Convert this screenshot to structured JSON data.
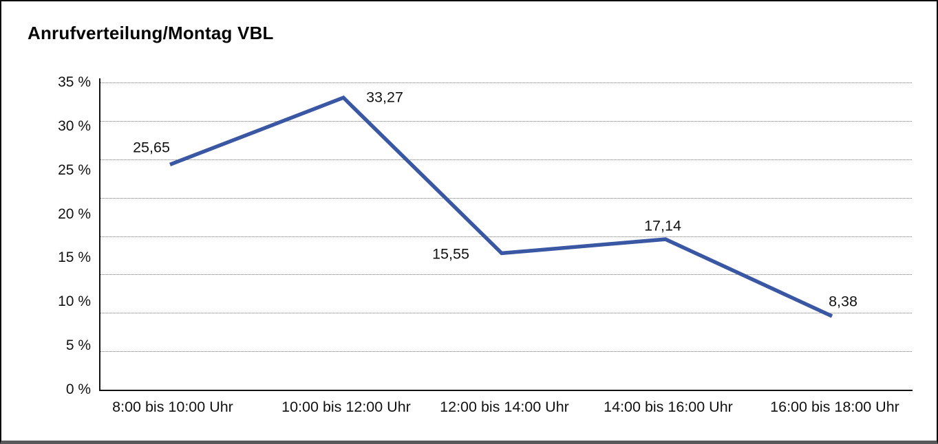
{
  "chart_data": {
    "type": "line",
    "title": "Anrufverteilung/Montag VBL",
    "categories": [
      "8:00 bis 10:00 Uhr",
      "10:00 bis 12:00 Uhr",
      "12:00 bis 14:00 Uhr",
      "14:00 bis 16:00 Uhr",
      "16:00 bis 18:00 Uhr"
    ],
    "series": [
      {
        "name": "Anrufverteilung Montag VBL",
        "values": [
          25.65,
          33.27,
          15.55,
          17.14,
          8.38
        ],
        "point_labels": [
          "25,65",
          "33,27",
          "15,55",
          "17,14",
          "8,38"
        ]
      }
    ],
    "xlabel": "",
    "ylabel": "",
    "ylim": [
      0,
      35
    ],
    "y_tick_labels": [
      "35 %",
      "30 %",
      "25 %",
      "20 %",
      "15 %",
      "10 %",
      "5 %",
      "0 %"
    ],
    "gridline_intervals": 8,
    "grid_style": "horizontal-dotted",
    "legend_position": "none",
    "colors": {
      "line": "#3A57A3",
      "text": "#111111",
      "gridline": "#6E6E6E",
      "axis": "#111111",
      "frame_border": "#0A0A0A",
      "frame_bottom_edge": "#59595B",
      "background": "#FFFFFF"
    }
  }
}
